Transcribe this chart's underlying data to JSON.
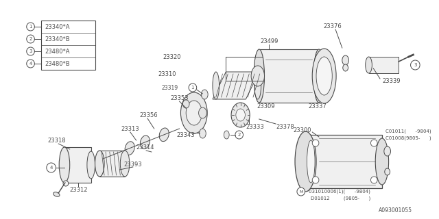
{
  "bg_color": "#ffffff",
  "line_color": "#4a4a4a",
  "diagram_id": "A093001055",
  "legend": [
    {
      "num": "1",
      "code": "23340*A"
    },
    {
      "num": "2",
      "code": "23340*B"
    },
    {
      "num": "3",
      "code": "23480*A"
    },
    {
      "num": "4",
      "code": "23480*B"
    }
  ],
  "figsize": [
    6.4,
    3.2
  ],
  "dpi": 100
}
